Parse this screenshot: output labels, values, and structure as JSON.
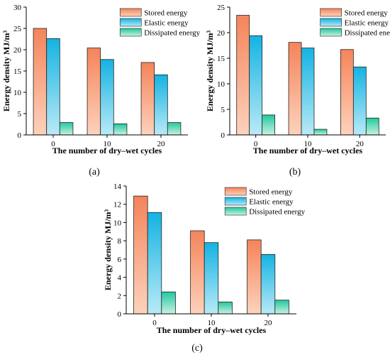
{
  "colors": {
    "stored": [
      "#F4845A",
      "#FDD2BC"
    ],
    "elastic": [
      "#14B3E3",
      "#B9EAF6"
    ],
    "dissipated": [
      "#22C89E",
      "#C9F1E3"
    ]
  },
  "chart_data": [
    {
      "type": "bar",
      "panel_label": "(a)",
      "categories": [
        "0",
        "10",
        "20"
      ],
      "xlabel": "The number of dry–wet cycles",
      "ylabel": "Energy density MJ/m³",
      "ylim": [
        0,
        30
      ],
      "yticks": [
        0,
        5,
        10,
        15,
        20,
        25,
        30
      ],
      "legend_position": "top-right",
      "grid": false,
      "series": [
        {
          "name": "Stored energy",
          "values": [
            25.0,
            20.4,
            17.0
          ]
        },
        {
          "name": "Elastic energy",
          "values": [
            22.6,
            17.7,
            14.1
          ]
        },
        {
          "name": "Dissipated energy",
          "values": [
            2.9,
            2.6,
            2.9
          ]
        }
      ]
    },
    {
      "type": "bar",
      "panel_label": "(b)",
      "categories": [
        "0",
        "10",
        "20"
      ],
      "xlabel": "The number of dry–wet cycles",
      "ylabel": "Energy density MJ/m³",
      "ylim": [
        0,
        25
      ],
      "yticks": [
        0,
        5,
        10,
        15,
        20,
        25
      ],
      "legend_position": "top-right",
      "grid": false,
      "series": [
        {
          "name": "Stored energy",
          "values": [
            23.4,
            18.1,
            16.7
          ]
        },
        {
          "name": "Elastic energy",
          "values": [
            19.4,
            17.0,
            13.3
          ]
        },
        {
          "name": "Dissipated energy",
          "values": [
            3.9,
            1.1,
            3.3
          ]
        }
      ]
    },
    {
      "type": "bar",
      "panel_label": "(c)",
      "categories": [
        "0",
        "10",
        "20"
      ],
      "xlabel": "The number of dry–wet cycles",
      "ylabel": "Energy density MJ/m³",
      "ylim": [
        0,
        14
      ],
      "yticks": [
        0,
        2,
        4,
        6,
        8,
        10,
        12,
        14
      ],
      "legend_position": "top-right",
      "grid": false,
      "series": [
        {
          "name": "Stored energy",
          "values": [
            12.9,
            9.1,
            8.1
          ]
        },
        {
          "name": "Elastic energy",
          "values": [
            11.1,
            7.8,
            6.5
          ]
        },
        {
          "name": "Dissipated energy",
          "values": [
            2.4,
            1.3,
            1.5
          ]
        }
      ]
    }
  ]
}
